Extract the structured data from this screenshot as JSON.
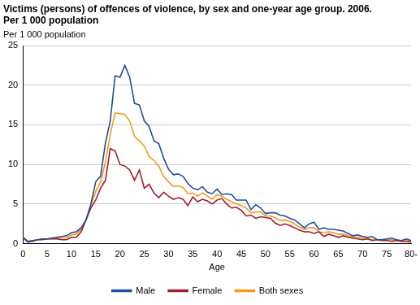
{
  "chart_data": {
    "type": "line",
    "title": [
      "Victims (persons) of offences of violence, by sex and one-year age group. 2006.",
      "Per 1 000 population"
    ],
    "y_label": "Per 1 000 population",
    "x_label": "Age",
    "categories": [
      "0",
      null,
      null,
      null,
      null,
      "5",
      null,
      null,
      null,
      null,
      "10",
      null,
      null,
      null,
      null,
      "15",
      null,
      null,
      null,
      null,
      "20",
      null,
      null,
      null,
      null,
      "25",
      null,
      null,
      null,
      null,
      "30",
      null,
      null,
      null,
      null,
      "35",
      null,
      null,
      null,
      null,
      "40",
      null,
      null,
      null,
      null,
      "45",
      null,
      null,
      null,
      null,
      "50",
      null,
      null,
      null,
      null,
      "55",
      null,
      null,
      null,
      null,
      "60",
      null,
      null,
      null,
      null,
      "65",
      null,
      null,
      null,
      null,
      "70",
      null,
      null,
      null,
      null,
      "75",
      null,
      null,
      null,
      null,
      "80-"
    ],
    "series": [
      {
        "name": "Male",
        "color": "#1f4e9e",
        "values": [
          0.8,
          0.3,
          0.4,
          0.5,
          0.5,
          0.6,
          0.7,
          0.8,
          0.9,
          1.0,
          1.4,
          1.5,
          2.0,
          3.0,
          5.0,
          7.8,
          8.5,
          12.7,
          15.5,
          21.2,
          21.0,
          22.5,
          21.0,
          17.7,
          17.5,
          15.5,
          14.8,
          13.0,
          12.6,
          10.8,
          9.4,
          8.7,
          8.8,
          8.5,
          7.6,
          7.0,
          6.8,
          7.2,
          6.5,
          6.3,
          6.9,
          6.2,
          6.3,
          6.2,
          5.5,
          5.5,
          5.5,
          4.3,
          4.9,
          4.5,
          3.8,
          3.9,
          3.9,
          3.6,
          3.5,
          3.2,
          3.0,
          2.5,
          2.0,
          2.5,
          2.7,
          1.8,
          2.0,
          1.8,
          1.8,
          1.7,
          1.6,
          1.3,
          1.0,
          1.1,
          0.9,
          0.8,
          0.9,
          0.5,
          0.5,
          0.6,
          0.7,
          0.5,
          0.4,
          0.6,
          0.4
        ]
      },
      {
        "name": "Female",
        "color": "#a31d2b",
        "values": [
          0.8,
          0.2,
          0.3,
          0.5,
          0.6,
          0.6,
          0.6,
          0.6,
          0.5,
          0.5,
          0.8,
          0.8,
          1.5,
          3.0,
          4.5,
          5.5,
          7.0,
          8.0,
          12.0,
          11.7,
          10.0,
          9.8,
          9.3,
          8.0,
          9.3,
          7.0,
          7.5,
          6.4,
          5.8,
          6.5,
          6.0,
          5.6,
          5.8,
          5.6,
          4.8,
          5.9,
          5.3,
          5.6,
          5.4,
          5.0,
          5.5,
          5.7,
          5.0,
          4.5,
          4.6,
          4.2,
          3.5,
          3.6,
          3.2,
          3.4,
          3.3,
          3.2,
          2.6,
          2.3,
          2.5,
          2.3,
          2.0,
          1.7,
          1.5,
          1.5,
          1.3,
          1.5,
          0.9,
          1.2,
          1.0,
          0.8,
          1.0,
          0.8,
          0.7,
          0.6,
          0.5,
          0.6,
          0.4,
          0.5,
          0.4,
          0.4,
          0.3,
          0.4,
          0.3,
          0.3,
          0.2
        ]
      },
      {
        "name": "Both sexes",
        "color": "#f39a1e",
        "values": [
          0.8,
          0.3,
          0.35,
          0.5,
          0.55,
          0.6,
          0.65,
          0.7,
          0.7,
          0.75,
          1.1,
          1.2,
          1.8,
          3.0,
          4.8,
          6.6,
          7.8,
          10.3,
          13.8,
          16.5,
          16.4,
          16.3,
          15.5,
          13.5,
          13.0,
          12.3,
          11.0,
          10.5,
          9.8,
          8.5,
          7.8,
          7.2,
          7.3,
          7.1,
          6.3,
          6.4,
          6.0,
          6.4,
          6.0,
          5.6,
          6.2,
          6.0,
          5.6,
          5.3,
          5.0,
          4.8,
          4.5,
          3.9,
          4.0,
          4.0,
          3.5,
          3.5,
          3.3,
          2.9,
          3.0,
          2.8,
          2.5,
          2.1,
          1.8,
          2.0,
          2.0,
          1.5,
          1.4,
          1.5,
          1.4,
          1.2,
          1.2,
          1.0,
          0.85,
          0.8,
          0.7,
          0.7,
          0.5,
          0.5,
          0.5,
          0.5,
          0.5,
          0.4,
          0.4,
          0.5,
          0.3
        ]
      }
    ],
    "ylim": [
      0,
      25
    ],
    "yticks": [
      0,
      5,
      10,
      15,
      20,
      25
    ],
    "grid": true,
    "legend": "bottom"
  }
}
